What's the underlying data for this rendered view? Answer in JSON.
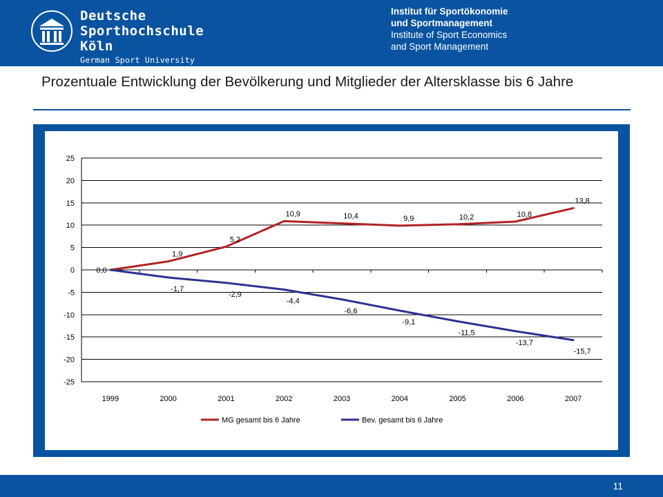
{
  "header": {
    "logo": {
      "line1": "Deutsche",
      "line2": "Sporthochschule Köln",
      "line3": "German Sport University Cologne"
    },
    "institute": {
      "de_line1": "Institut für Sportökonomie",
      "de_line2": "und Sportmanagement",
      "en_line1": "Institute of Sport Economics",
      "en_line2": "and Sport Management"
    }
  },
  "slide": {
    "title": "Prozentuale Entwicklung der Bevölkerung und Mitglieder der Altersklasse bis 6 Jahre",
    "page_number": "11"
  },
  "colors": {
    "brand": "#0a53a0",
    "series1": "#b22222",
    "series2": "#2e3192"
  },
  "chart_data": {
    "type": "line",
    "title": "",
    "xlabel": "",
    "ylabel": "",
    "ylim": [
      -25,
      25
    ],
    "yticks": [
      25,
      20,
      15,
      10,
      5,
      0,
      -5,
      -10,
      -15,
      -20,
      -25
    ],
    "ytick_labels": [
      "25",
      "20",
      "15",
      "10",
      "5",
      "0",
      "-5",
      "-10",
      "-15",
      "-20",
      "-25"
    ],
    "grid": true,
    "legend_position": "bottom",
    "categories": [
      "1999",
      "2000",
      "2001",
      "2002",
      "2003",
      "2004",
      "2005",
      "2006",
      "2007"
    ],
    "series": [
      {
        "name": "MG gesamt bis 6 Jahre",
        "color": "#b22222",
        "values": [
          0.0,
          1.9,
          5.2,
          10.9,
          10.4,
          9.9,
          10.2,
          10.8,
          13.8
        ],
        "labels": [
          "0,0",
          "1,9",
          "5,2",
          "10,9",
          "10,4",
          "9,9",
          "10,2",
          "10,8",
          "13,8"
        ]
      },
      {
        "name": "Bev. gesamt bis 6 Jahre",
        "color": "#2e3192",
        "values": [
          0.0,
          -1.7,
          -2.9,
          -4.4,
          -6.6,
          -9.1,
          -11.5,
          -13.7,
          -15.7
        ],
        "labels": [
          "",
          "-1,7",
          "-2,9",
          "-4,4",
          "-6,6",
          "-9,1",
          "-11,5",
          "-13,7",
          "-15,7"
        ]
      }
    ]
  }
}
